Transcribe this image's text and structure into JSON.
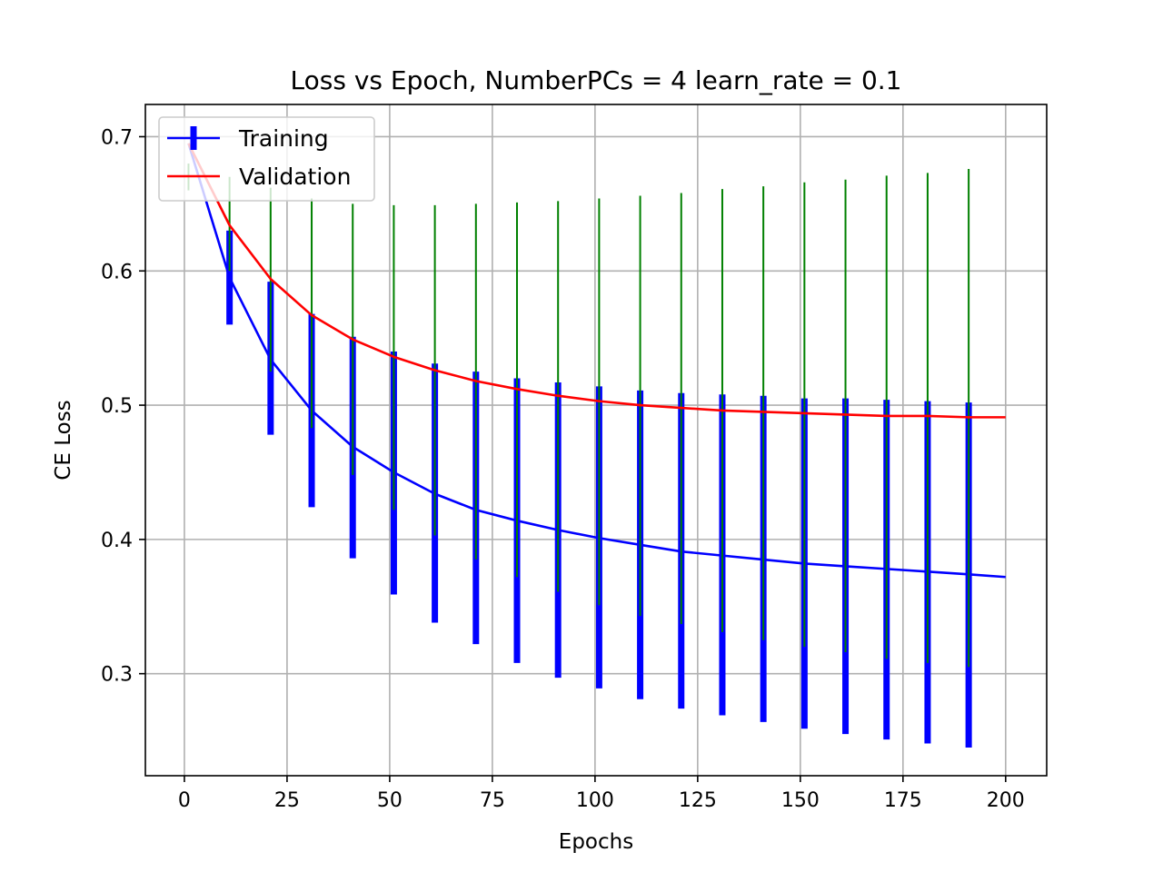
{
  "chart_data": {
    "type": "line",
    "title": "Loss vs Epoch, NumberPCs = 4 learn_rate = 0.1",
    "xlabel": "Epochs",
    "ylabel": "CE Loss",
    "xlim": [
      -9.5,
      210
    ],
    "ylim": [
      0.224,
      0.724
    ],
    "xticks": [
      0,
      25,
      50,
      75,
      100,
      125,
      150,
      175,
      200
    ],
    "yticks": [
      0.3,
      0.4,
      0.5,
      0.6,
      0.7
    ],
    "ytick_labels": [
      "0.3",
      "0.4",
      "0.5",
      "0.6",
      "0.7"
    ],
    "grid": true,
    "legend_position": "top-left",
    "series": [
      {
        "name": "Training",
        "color": "#0000ff",
        "error_color": "#0000ff",
        "x": [
          1,
          11,
          21,
          31,
          41,
          51,
          61,
          71,
          81,
          91,
          101,
          111,
          121,
          131,
          141,
          151,
          161,
          171,
          181,
          191,
          200
        ],
        "y": [
          0.695,
          0.595,
          0.534,
          0.496,
          0.469,
          0.45,
          0.434,
          0.422,
          0.414,
          0.407,
          0.401,
          0.396,
          0.391,
          0.388,
          0.385,
          0.382,
          0.38,
          0.378,
          0.376,
          0.374,
          0.372
        ],
        "err_x": [
          11,
          21,
          31,
          41,
          51,
          61,
          71,
          81,
          91,
          101,
          111,
          121,
          131,
          141,
          151,
          161,
          171,
          181,
          191
        ],
        "err_low": [
          0.56,
          0.478,
          0.424,
          0.386,
          0.359,
          0.338,
          0.322,
          0.308,
          0.297,
          0.289,
          0.281,
          0.274,
          0.269,
          0.264,
          0.259,
          0.255,
          0.251,
          0.248,
          0.245
        ],
        "err_high": [
          0.63,
          0.592,
          0.568,
          0.551,
          0.54,
          0.531,
          0.525,
          0.52,
          0.517,
          0.514,
          0.511,
          0.509,
          0.508,
          0.507,
          0.505,
          0.505,
          0.504,
          0.503,
          0.502
        ]
      },
      {
        "name": "Validation",
        "color": "#ff0000",
        "error_color": "#008000",
        "x": [
          1,
          11,
          21,
          31,
          41,
          51,
          61,
          71,
          81,
          91,
          101,
          111,
          121,
          131,
          141,
          151,
          161,
          171,
          181,
          191,
          200
        ],
        "y": [
          0.695,
          0.634,
          0.594,
          0.567,
          0.549,
          0.536,
          0.526,
          0.518,
          0.512,
          0.507,
          0.503,
          0.5,
          0.498,
          0.496,
          0.495,
          0.494,
          0.493,
          0.492,
          0.492,
          0.491,
          0.491
        ],
        "err_x": [
          1,
          11,
          21,
          31,
          41,
          51,
          61,
          71,
          81,
          91,
          101,
          111,
          121,
          131,
          141,
          151,
          161,
          171,
          181,
          191
        ],
        "err_low": [
          0.66,
          0.6,
          0.525,
          0.483,
          0.448,
          0.422,
          0.403,
          0.385,
          0.372,
          0.361,
          0.351,
          0.343,
          0.337,
          0.331,
          0.325,
          0.32,
          0.316,
          0.311,
          0.308,
          0.305
        ],
        "err_high": [
          0.68,
          0.67,
          0.662,
          0.654,
          0.65,
          0.649,
          0.649,
          0.65,
          0.651,
          0.652,
          0.654,
          0.656,
          0.658,
          0.661,
          0.663,
          0.666,
          0.668,
          0.671,
          0.673,
          0.676
        ]
      }
    ]
  }
}
